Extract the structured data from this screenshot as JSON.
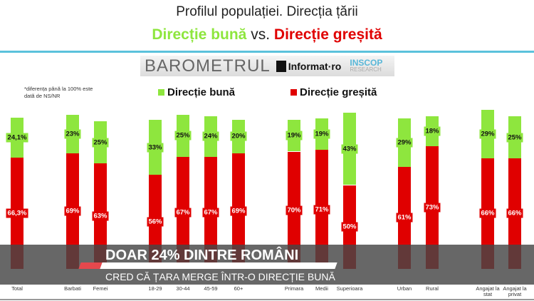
{
  "header": {
    "title": "Profilul populației. Direcția țării",
    "subtitle_good": "Direcție bună",
    "subtitle_vs": "vs.",
    "subtitle_bad": "Direcție greșită"
  },
  "logo": {
    "barometru": "BAROMETRUL",
    "informat": "Informat·ro",
    "inscop": "INSCOP",
    "research": "RESEARCH"
  },
  "note": "*diferența până la 100% este dată de NS/NR",
  "colors": {
    "good": "#8ee63e",
    "bad": "#e00000",
    "accent_line": "#5bc2dc"
  },
  "chart_data": {
    "type": "bar",
    "stacked": true,
    "grid": false,
    "legend": "top",
    "categories": [
      "Total",
      "Barbati",
      "Femei",
      "18-29",
      "30-44",
      "45-59",
      "60+",
      "Primara",
      "Medii",
      "Superioara",
      "Urban",
      "Rural",
      "Angajat la stat",
      "Angajat la privat"
    ],
    "series": [
      {
        "name": "Direcție greșită",
        "values": [
          66.3,
          69,
          63,
          56,
          67,
          67,
          69,
          70,
          71,
          50,
          61,
          73,
          66,
          66
        ],
        "labels": [
          "66,3%",
          "69%",
          "63%",
          "56%",
          "67%",
          "67%",
          "69%",
          "70%",
          "71%",
          "50%",
          "61%",
          "73%",
          "66%",
          "66%"
        ]
      },
      {
        "name": "Direcție bună",
        "values": [
          24.1,
          23,
          25,
          33,
          25,
          24,
          20,
          19,
          19,
          43,
          29,
          18,
          29,
          25
        ],
        "labels": [
          "24,1%",
          "23%",
          "25%",
          "33%",
          "25%",
          "24%",
          "20%",
          "19%",
          "19%",
          "43%",
          "29%",
          "18%",
          "29%",
          "25%"
        ]
      }
    ],
    "ylim": [
      0,
      100
    ]
  },
  "ticker": {
    "headline": "DOAR 24% DINTRE ROMÂNI",
    "subline": "CRED CĂ ȚARA MERGE ÎNTR-O DIRECȚIE BUNĂ"
  }
}
